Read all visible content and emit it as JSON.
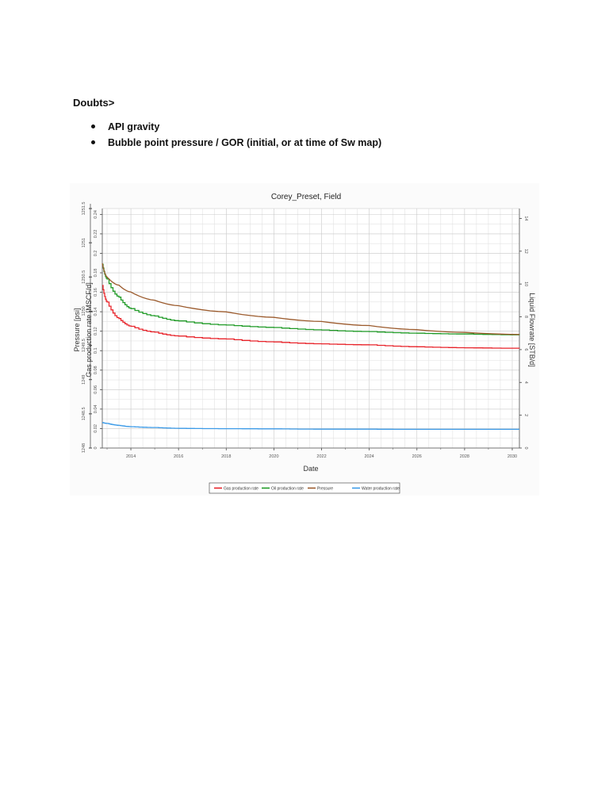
{
  "document": {
    "heading": "Doubts>",
    "bullets": [
      "API gravity",
      "Bubble point pressure / GOR (initial, or at time of Sw map)"
    ]
  },
  "chart_data": {
    "type": "line",
    "title": "Corey_Preset, Field",
    "xlabel": "Date",
    "ylabel_left_outer": "Pressure [psi]",
    "ylabel_left_inner": "Gas production rate [MSCF/d]",
    "ylabel_right": "Liquid Flowrate [STB/d]",
    "grid": true,
    "legend_position": "bottom",
    "x": [
      2012.8,
      2013.0,
      2013.5,
      2014,
      2015,
      2016,
      2018,
      2020,
      2022,
      2024,
      2026,
      2028,
      2030.3
    ],
    "x_ticks": [
      "2014",
      "2016",
      "2018",
      "2020",
      "2022",
      "2024",
      "2026",
      "2028",
      "2030"
    ],
    "xlim": [
      2012.8,
      2030.3
    ],
    "axes": {
      "pressure": {
        "ticks": [
          "1248",
          "1248.5",
          "1249",
          "1249.5",
          "1250",
          "1250.5",
          "1251",
          "1251.5"
        ],
        "ylim": [
          1248,
          1251.5
        ]
      },
      "gas": {
        "ticks": [
          "0",
          "0.02",
          "0.04",
          "0.06",
          "0.08",
          "0.1",
          "0.12",
          "0.14",
          "0.16",
          "0.18",
          "0.2",
          "0.22",
          "0.24"
        ],
        "ylim": [
          0,
          0.246
        ]
      },
      "liquid": {
        "ticks": [
          "0",
          "2",
          "4",
          "6",
          "8",
          "10",
          "12",
          "14"
        ],
        "ylim": [
          0,
          14.6
        ]
      }
    },
    "series": [
      {
        "name": "Gas production rate",
        "axis": "gas",
        "color": "#e8232a",
        "values": [
          0.167,
          0.15,
          0.133,
          0.125,
          0.119,
          0.115,
          0.112,
          0.109,
          0.107,
          0.106,
          0.104,
          0.103,
          0.1025
        ]
      },
      {
        "name": "Oil production rate",
        "axis": "liquid",
        "color": "#1f9a26",
        "values": [
          11.2,
          10.3,
          9.2,
          8.5,
          8.05,
          7.75,
          7.5,
          7.35,
          7.2,
          7.1,
          7.0,
          6.95,
          6.9
        ]
      },
      {
        "name": "Pressure",
        "axis": "pressure",
        "color": "#9b5a2c",
        "values": [
          1250.7,
          1250.5,
          1250.38,
          1250.28,
          1250.16,
          1250.08,
          1249.99,
          1249.91,
          1249.85,
          1249.79,
          1249.73,
          1249.69,
          1249.66
        ]
      },
      {
        "name": "Water production rate",
        "axis": "liquid",
        "color": "#3c9be8",
        "values": [
          1.55,
          1.5,
          1.38,
          1.3,
          1.25,
          1.2,
          1.18,
          1.17,
          1.15,
          1.15,
          1.14,
          1.14,
          1.14
        ]
      }
    ]
  }
}
